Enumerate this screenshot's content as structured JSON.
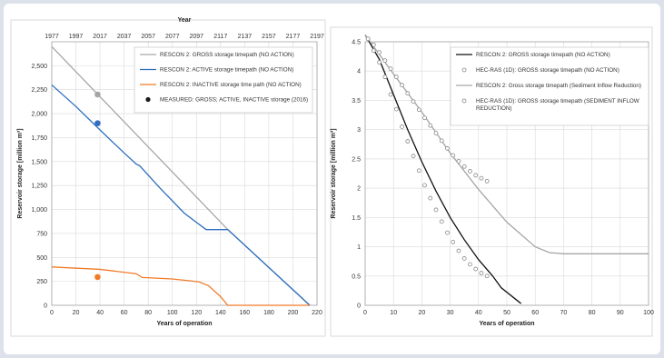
{
  "chart_data": [
    {
      "type": "line",
      "xlabel": "Years of operation",
      "x2label": "Year",
      "ylabel": "Reservoir storage [million m³]",
      "xlim": [
        0,
        220
      ],
      "ylim": [
        0,
        2750
      ],
      "xticks": [
        0,
        20,
        40,
        60,
        80,
        100,
        120,
        140,
        160,
        180,
        200,
        220
      ],
      "x2ticks": [
        "1977",
        "1997",
        "2017",
        "2037",
        "2057",
        "2077",
        "2097",
        "2117",
        "2137",
        "2157",
        "2177",
        "2197"
      ],
      "yticks": [
        0,
        250,
        500,
        750,
        1000,
        1250,
        1500,
        1750,
        2000,
        2250,
        2500
      ],
      "ytick_labels": [
        "0",
        "250",
        "500",
        "750",
        "1,000",
        "1,250",
        "1,500",
        "1,750",
        "2,000",
        "2,250",
        "2,500"
      ],
      "grid": true,
      "legend_position": "top-right",
      "series": [
        {
          "name": "RESCON 2: GROSS storage timepath (NO ACTION)",
          "color": "#a6a6a6",
          "style": "line",
          "points": [
            [
              0,
              2700
            ],
            [
              146,
              790
            ],
            [
              214,
              0
            ]
          ]
        },
        {
          "name": "RESCON 2: ACTIVE storage timepath (NO ACTION)",
          "color": "#2e6fbf",
          "style": "line",
          "points": [
            [
              0,
              2300
            ],
            [
              20,
              2075
            ],
            [
              40,
              1830
            ],
            [
              60,
              1590
            ],
            [
              70,
              1475
            ],
            [
              73,
              1455
            ],
            [
              90,
              1220
            ],
            [
              110,
              960
            ],
            [
              128,
              790
            ],
            [
              146,
              790
            ],
            [
              214,
              0
            ]
          ]
        },
        {
          "name": "RESCON 2: INACTIVE storage time path (NO ACTION)",
          "color": "#f07c2a",
          "style": "line",
          "points": [
            [
              0,
              400
            ],
            [
              40,
              375
            ],
            [
              70,
              330
            ],
            [
              75,
              290
            ],
            [
              100,
              275
            ],
            [
              122,
              245
            ],
            [
              130,
              205
            ],
            [
              140,
              90
            ],
            [
              146,
              0
            ],
            [
              214,
              0
            ]
          ]
        },
        {
          "name": "MEASURED: GROSS; ACTIVE, INACTIVE storage (2016)",
          "color": "#1a1a1a",
          "style": "markers",
          "points": [
            [
              38,
              2200
            ],
            [
              38,
              1900
            ],
            [
              38,
              295
            ]
          ],
          "point_colors": [
            "#a6a6a6",
            "#2e6fbf",
            "#f07c2a"
          ]
        }
      ]
    },
    {
      "type": "line",
      "xlabel": "Years of operation",
      "ylabel": "Reservoir storage [million m³]",
      "xlim": [
        0,
        100
      ],
      "ylim": [
        0,
        4.5
      ],
      "xticks": [
        0,
        10,
        20,
        30,
        40,
        50,
        60,
        70,
        80,
        90,
        100
      ],
      "yticks": [
        0,
        0.5,
        1,
        1.5,
        2,
        2.5,
        3,
        3.5,
        4,
        4.5
      ],
      "ytick_labels": [
        "0",
        "0.5",
        "1",
        "1.5",
        "2",
        "2.5",
        "3",
        "3.5",
        "4",
        "4.5"
      ],
      "grid": true,
      "legend_position": "top-right",
      "series": [
        {
          "name": "RESCON 2: GROSS storage timepath (NO ACTION)",
          "color": "#111111",
          "style": "line",
          "points": [
            [
              0,
              4.62
            ],
            [
              5,
              4.2
            ],
            [
              10,
              3.6
            ],
            [
              15,
              3.0
            ],
            [
              20,
              2.45
            ],
            [
              25,
              1.95
            ],
            [
              30,
              1.5
            ],
            [
              35,
              1.12
            ],
            [
              40,
              0.78
            ],
            [
              45,
              0.5
            ],
            [
              48,
              0.3
            ],
            [
              55,
              0.03
            ]
          ]
        },
        {
          "name": "HEC-RAS (1D): GROSS storage timepath (NO ACTION)",
          "color": "#888888",
          "style": "markers",
          "points": [
            [
              1,
              4.55
            ],
            [
              3,
              4.35
            ],
            [
              5,
              4.15
            ],
            [
              7,
              3.9
            ],
            [
              9,
              3.6
            ],
            [
              11,
              3.35
            ],
            [
              13,
              3.05
            ],
            [
              15,
              2.8
            ],
            [
              17,
              2.55
            ],
            [
              19,
              2.3
            ],
            [
              21,
              2.05
            ],
            [
              23,
              1.83
            ],
            [
              25,
              1.63
            ],
            [
              27,
              1.43
            ],
            [
              29,
              1.24
            ],
            [
              31,
              1.08
            ],
            [
              33,
              0.93
            ],
            [
              35,
              0.8
            ],
            [
              37,
              0.7
            ],
            [
              39,
              0.62
            ],
            [
              41,
              0.55
            ],
            [
              43,
              0.5
            ]
          ]
        },
        {
          "name": "RESCON 2: Gross storage timepath (Sediment Inflow Reduction)",
          "color": "#a6a6a6",
          "style": "line",
          "points": [
            [
              0,
              4.62
            ],
            [
              10,
              3.95
            ],
            [
              20,
              3.3
            ],
            [
              30,
              2.6
            ],
            [
              40,
              1.98
            ],
            [
              50,
              1.42
            ],
            [
              60,
              1.0
            ],
            [
              65,
              0.9
            ],
            [
              70,
              0.88
            ],
            [
              100,
              0.88
            ]
          ]
        },
        {
          "name": "HEC-RAS (1D): GROSS storage timepath (SEDIMENT INFLOW REDUCTION)",
          "color": "#888888",
          "style": "markers",
          "points": [
            [
              1,
              4.55
            ],
            [
              3,
              4.45
            ],
            [
              5,
              4.32
            ],
            [
              7,
              4.18
            ],
            [
              9,
              4.04
            ],
            [
              11,
              3.9
            ],
            [
              13,
              3.76
            ],
            [
              15,
              3.62
            ],
            [
              17,
              3.48
            ],
            [
              19,
              3.34
            ],
            [
              21,
              3.2
            ],
            [
              23,
              3.07
            ],
            [
              25,
              2.94
            ],
            [
              27,
              2.81
            ],
            [
              29,
              2.68
            ],
            [
              31,
              2.56
            ],
            [
              33,
              2.46
            ],
            [
              35,
              2.37
            ],
            [
              37,
              2.29
            ],
            [
              39,
              2.22
            ],
            [
              41,
              2.17
            ],
            [
              43,
              2.12
            ]
          ]
        }
      ]
    }
  ]
}
